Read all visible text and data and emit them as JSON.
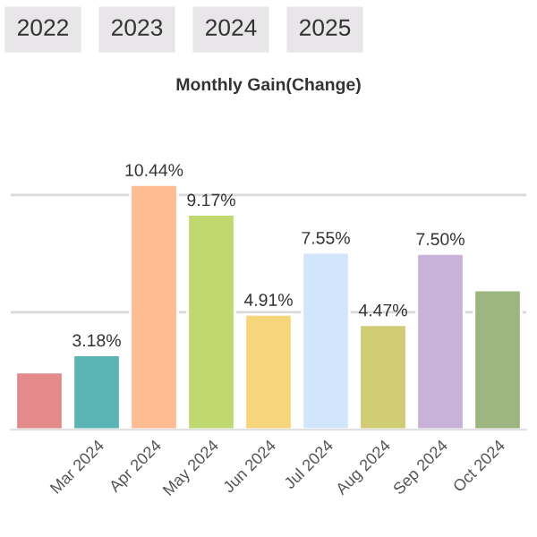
{
  "chart_data": {
    "type": "bar",
    "title": "Monthly Gain(Change)",
    "annotations": [
      "2022",
      "2023",
      "2024",
      "2025"
    ],
    "categories": [
      null,
      "Mar 2024",
      "Apr 2024",
      "May 2024",
      "Jun 2024",
      "Jul 2024",
      "Aug 2024",
      "Sep 2024",
      "Oct 2024"
    ],
    "values": [
      2.45,
      3.18,
      10.44,
      9.17,
      4.91,
      7.55,
      4.47,
      7.5,
      5.95
    ],
    "colors": [
      "#e58a8a",
      "#5ab4b4",
      "#ffbb91",
      "#bfd870",
      "#f7d57a",
      "#d2e6fb",
      "#cfcc73",
      "#c9b2da",
      "#9db57f"
    ],
    "value_labels": [
      null,
      "3.18%",
      "10.44%",
      "9.17%",
      "4.91%",
      "7.55%",
      "4.47%",
      "7.50%",
      null
    ],
    "ref_lines": [
      {
        "axis": "y",
        "value": 5,
        "color": "#d9d9d9"
      },
      {
        "axis": "y",
        "value": 10,
        "color": "#d9d9d9"
      }
    ],
    "tick_labels": "x"
  }
}
